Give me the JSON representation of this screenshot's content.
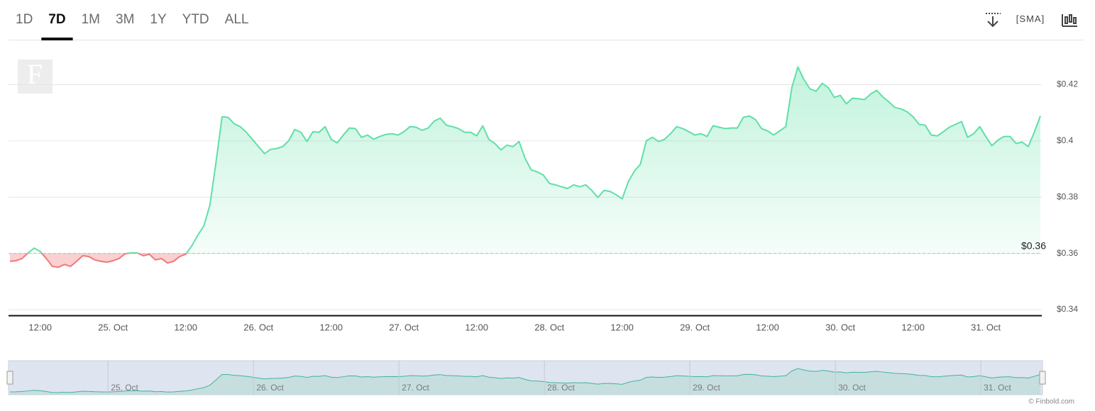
{
  "ranges": [
    "1D",
    "7D",
    "1M",
    "3M",
    "1Y",
    "YTD",
    "ALL"
  ],
  "active_range": "7D",
  "indicator": "SMA",
  "logo": "F",
  "credit": "© Finbold.com",
  "chart_data": {
    "type": "line",
    "categories": [
      null,
      null,
      null,
      null,
      null,
      "12:00",
      null,
      null,
      null,
      null,
      null,
      null,
      null,
      null,
      null,
      null,
      null,
      "25. Oct",
      null,
      null,
      null,
      null,
      null,
      null,
      null,
      null,
      null,
      null,
      null,
      "12:00",
      null,
      null,
      null,
      null,
      null,
      null,
      null,
      null,
      null,
      null,
      null,
      "26. Oct",
      null,
      null,
      null,
      null,
      null,
      null,
      null,
      null,
      null,
      null,
      null,
      "12:00",
      null,
      null,
      null,
      null,
      null,
      null,
      null,
      null,
      null,
      null,
      null,
      "27. Oct",
      null,
      null,
      null,
      null,
      null,
      null,
      null,
      null,
      null,
      null,
      null,
      "12:00",
      null,
      null,
      null,
      null,
      null,
      null,
      null,
      null,
      null,
      null,
      null,
      "28. Oct",
      null,
      null,
      null,
      null,
      null,
      null,
      null,
      null,
      null,
      null,
      null,
      "12:00",
      null,
      null,
      null,
      null,
      null,
      null,
      null,
      null,
      null,
      null,
      null,
      "29. Oct",
      null,
      null,
      null,
      null,
      null,
      null,
      null,
      null,
      null,
      null,
      null,
      "12:00",
      null,
      null,
      null,
      null,
      null,
      null,
      null,
      null,
      null,
      null,
      null,
      "30. Oct",
      null,
      null,
      null,
      null,
      null,
      null,
      null,
      null,
      null,
      null,
      null,
      "12:00",
      null,
      null,
      null,
      null,
      null,
      null,
      null,
      null,
      null,
      null,
      null,
      "31. Oct",
      null,
      null,
      null,
      null,
      null,
      null,
      null,
      null,
      null
    ],
    "series": [
      {
        "color": "#5fe0a6",
        "down_color": "#f07878",
        "values": [
          0.3572,
          0.3574,
          0.3582,
          0.3602,
          0.3619,
          0.3607,
          0.3582,
          0.3554,
          0.3551,
          0.3561,
          0.3554,
          0.3572,
          0.3592,
          0.3589,
          0.3577,
          0.3572,
          0.3569,
          0.3574,
          0.3582,
          0.3599,
          0.3602,
          0.3602,
          0.3592,
          0.3597,
          0.3577,
          0.3582,
          0.3566,
          0.3572,
          0.3589,
          0.3597,
          0.3627,
          0.3665,
          0.3698,
          0.3773,
          0.3925,
          0.4086,
          0.4084,
          0.4061,
          0.4051,
          0.4031,
          0.4006,
          0.398,
          0.3955,
          0.397,
          0.3973,
          0.398,
          0.4001,
          0.4041,
          0.4031,
          0.3998,
          0.4033,
          0.4031,
          0.4051,
          0.4006,
          0.3993,
          0.4021,
          0.4046,
          0.4044,
          0.4013,
          0.4021,
          0.4006,
          0.4016,
          0.4023,
          0.4026,
          0.4021,
          0.4033,
          0.4051,
          0.4049,
          0.4038,
          0.4046,
          0.4071,
          0.4081,
          0.4056,
          0.4051,
          0.4044,
          0.4031,
          0.4031,
          0.4018,
          0.4054,
          0.4006,
          0.3991,
          0.3968,
          0.3985,
          0.398,
          0.3998,
          0.3938,
          0.3897,
          0.389,
          0.3879,
          0.3849,
          0.3844,
          0.3837,
          0.3831,
          0.3844,
          0.3837,
          0.3844,
          0.3824,
          0.3799,
          0.3824,
          0.3821,
          0.3809,
          0.3794,
          0.3854,
          0.3892,
          0.3917,
          0.4001,
          0.4013,
          0.3998,
          0.4006,
          0.4026,
          0.4051,
          0.4044,
          0.4033,
          0.4021,
          0.4026,
          0.4016,
          0.4054,
          0.4049,
          0.4044,
          0.4046,
          0.4046,
          0.4084,
          0.4089,
          0.4076,
          0.4044,
          0.4036,
          0.4021,
          0.4036,
          0.4051,
          0.419,
          0.4263,
          0.4218,
          0.4185,
          0.4177,
          0.4205,
          0.419,
          0.4155,
          0.4162,
          0.4132,
          0.4152,
          0.415,
          0.4147,
          0.4167,
          0.418,
          0.4157,
          0.4139,
          0.4119,
          0.4114,
          0.4104,
          0.4086,
          0.4059,
          0.4056,
          0.4021,
          0.4018,
          0.4033,
          0.4049,
          0.4059,
          0.4069,
          0.4013,
          0.4026,
          0.4051,
          0.4016,
          0.3983,
          0.4003,
          0.4016,
          0.4016,
          0.3991,
          0.3996,
          0.398,
          0.4031,
          0.4089
        ]
      }
    ],
    "baseline": {
      "value": 0.36,
      "label": "$0.36"
    },
    "ylim": [
      0.338,
      0.435
    ],
    "yticks": [
      {
        "value": 0.34,
        "label": "$0.34"
      },
      {
        "value": 0.36,
        "label": "$0.36"
      },
      {
        "value": 0.38,
        "label": "$0.38"
      },
      {
        "value": 0.4,
        "label": "$0.4"
      },
      {
        "value": 0.42,
        "label": "$0.42"
      }
    ],
    "grid": true,
    "navigator": true
  }
}
